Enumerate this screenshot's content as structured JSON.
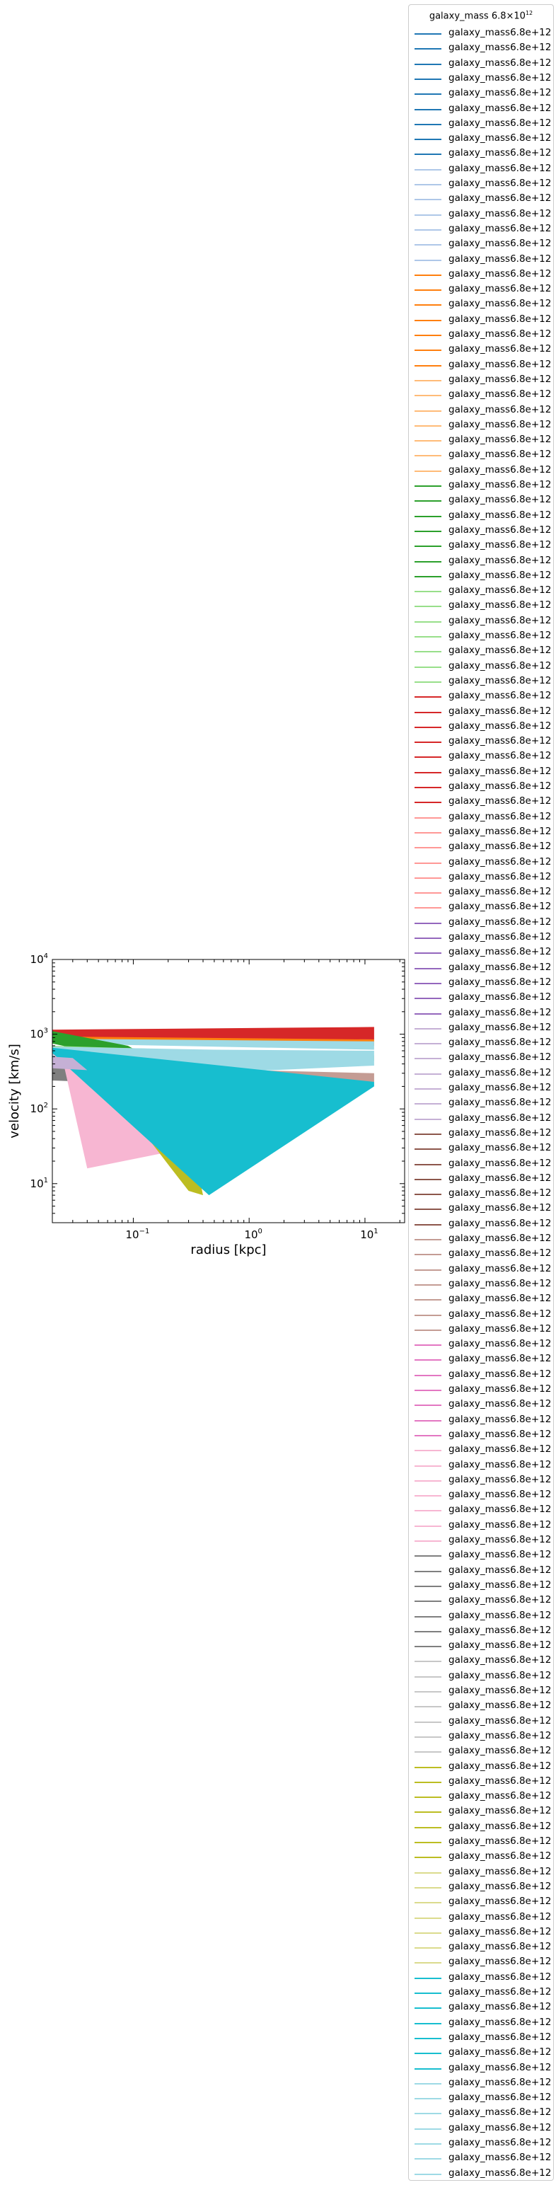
{
  "chart_data": {
    "type": "area",
    "xlabel": "radius [kpc]",
    "ylabel": "velocity [km/s]",
    "x_scale": "log",
    "y_scale": "log",
    "xlim": [
      0.02,
      22
    ],
    "ylim": [
      3,
      10000
    ],
    "x_ticks": [
      {
        "value": 0.1,
        "label": "10",
        "exp": "−1"
      },
      {
        "value": 1,
        "label": "10",
        "exp": "0"
      },
      {
        "value": 10,
        "label": "10",
        "exp": "1"
      }
    ],
    "y_ticks": [
      {
        "value": 10,
        "label": "10",
        "exp": "1"
      },
      {
        "value": 100,
        "label": "10",
        "exp": "2"
      },
      {
        "value": 1000,
        "label": "10",
        "exp": "3"
      },
      {
        "value": 10000,
        "label": "10",
        "exp": "4"
      }
    ],
    "grid": false,
    "legend_position": "outside-right",
    "legend_title": "galaxy_mass 6.8×10",
    "legend_title_exp": "12",
    "legend_label": "galaxy_mass6.8e+12",
    "legend_colors": [
      "#1f77b4",
      "#1f77b4",
      "#1f77b4",
      "#1f77b4",
      "#1f77b4",
      "#1f77b4",
      "#1f77b4",
      "#1f77b4",
      "#1f77b4",
      "#aec7e8",
      "#aec7e8",
      "#aec7e8",
      "#aec7e8",
      "#aec7e8",
      "#aec7e8",
      "#aec7e8",
      "#ff7f0e",
      "#ff7f0e",
      "#ff7f0e",
      "#ff7f0e",
      "#ff7f0e",
      "#ff7f0e",
      "#ff7f0e",
      "#ffbb78",
      "#ffbb78",
      "#ffbb78",
      "#ffbb78",
      "#ffbb78",
      "#ffbb78",
      "#ffbb78",
      "#2ca02c",
      "#2ca02c",
      "#2ca02c",
      "#2ca02c",
      "#2ca02c",
      "#2ca02c",
      "#2ca02c",
      "#98df8a",
      "#98df8a",
      "#98df8a",
      "#98df8a",
      "#98df8a",
      "#98df8a",
      "#98df8a",
      "#d62728",
      "#d62728",
      "#d62728",
      "#d62728",
      "#d62728",
      "#d62728",
      "#d62728",
      "#d62728",
      "#ff9896",
      "#ff9896",
      "#ff9896",
      "#ff9896",
      "#ff9896",
      "#ff9896",
      "#ff9896",
      "#9467bd",
      "#9467bd",
      "#9467bd",
      "#9467bd",
      "#9467bd",
      "#9467bd",
      "#9467bd",
      "#c5b0d5",
      "#c5b0d5",
      "#c5b0d5",
      "#c5b0d5",
      "#c5b0d5",
      "#c5b0d5",
      "#c5b0d5",
      "#8c564b",
      "#8c564b",
      "#8c564b",
      "#8c564b",
      "#8c564b",
      "#8c564b",
      "#8c564b",
      "#c49c94",
      "#c49c94",
      "#c49c94",
      "#c49c94",
      "#c49c94",
      "#c49c94",
      "#c49c94",
      "#e377c2",
      "#e377c2",
      "#e377c2",
      "#e377c2",
      "#e377c2",
      "#e377c2",
      "#e377c2",
      "#f7b6d2",
      "#f7b6d2",
      "#f7b6d2",
      "#f7b6d2",
      "#f7b6d2",
      "#f7b6d2",
      "#f7b6d2",
      "#7f7f7f",
      "#7f7f7f",
      "#7f7f7f",
      "#7f7f7f",
      "#7f7f7f",
      "#7f7f7f",
      "#7f7f7f",
      "#c7c7c7",
      "#c7c7c7",
      "#c7c7c7",
      "#c7c7c7",
      "#c7c7c7",
      "#c7c7c7",
      "#c7c7c7",
      "#bcbd22",
      "#bcbd22",
      "#bcbd22",
      "#bcbd22",
      "#bcbd22",
      "#bcbd22",
      "#bcbd22",
      "#dbdb8d",
      "#dbdb8d",
      "#dbdb8d",
      "#dbdb8d",
      "#dbdb8d",
      "#dbdb8d",
      "#dbdb8d",
      "#17becf",
      "#17becf",
      "#17becf",
      "#17becf",
      "#17becf",
      "#17becf",
      "#17becf",
      "#9edae5",
      "#9edae5",
      "#9edae5",
      "#9edae5",
      "#9edae5",
      "#9edae5",
      "#9edae5"
    ],
    "areas": [
      {
        "color": "#ff7f0e",
        "points": [
          [
            0.02,
            1050
          ],
          [
            0.02,
            850
          ],
          [
            12,
            700
          ],
          [
            12,
            850
          ]
        ]
      },
      {
        "color": "#d62728",
        "points": [
          [
            0.02,
            1150
          ],
          [
            0.02,
            930
          ],
          [
            12,
            850
          ],
          [
            12,
            1250
          ]
        ]
      },
      {
        "color": "#9edae5",
        "points": [
          [
            0.02,
            870
          ],
          [
            0.02,
            750
          ],
          [
            12,
            620
          ],
          [
            12,
            800
          ]
        ]
      },
      {
        "color": "#2ca02c",
        "points": [
          [
            0.02,
            1100
          ],
          [
            0.02,
            750
          ],
          [
            0.2,
            350
          ],
          [
            0.09,
            700
          ]
        ]
      },
      {
        "color": "#7f7f7f",
        "points": [
          [
            0.02,
            520
          ],
          [
            0.02,
            240
          ],
          [
            0.09,
            220
          ],
          [
            0.05,
            480
          ]
        ]
      },
      {
        "color": "#c49c94",
        "points": [
          [
            0.2,
            300
          ],
          [
            12,
            230
          ],
          [
            12,
            300
          ],
          [
            0.5,
            340
          ]
        ]
      },
      {
        "color": "#98df8a",
        "points": [
          [
            0.02,
            700
          ],
          [
            0.02,
            600
          ],
          [
            12,
            440
          ],
          [
            12,
            520
          ]
        ]
      },
      {
        "color": "#9edae5",
        "points": [
          [
            0.02,
            680
          ],
          [
            0.02,
            380
          ],
          [
            0.4,
            300
          ],
          [
            12,
            380
          ],
          [
            12,
            600
          ],
          [
            0.5,
            620
          ]
        ]
      },
      {
        "color": "#f7b6d2",
        "points": [
          [
            0.02,
            540
          ],
          [
            0.025,
            400
          ],
          [
            0.04,
            16
          ],
          [
            0.3,
            30
          ],
          [
            0.25,
            300
          ]
        ]
      },
      {
        "color": "#bcbd22",
        "points": [
          [
            0.05,
            300
          ],
          [
            0.2,
            18
          ],
          [
            0.3,
            8
          ],
          [
            0.4,
            7
          ],
          [
            0.3,
            60
          ]
        ]
      },
      {
        "color": "#17becf",
        "points": [
          [
            0.02,
            660
          ],
          [
            0.02,
            560
          ],
          [
            0.45,
            7
          ],
          [
            12,
            200
          ],
          [
            12,
            230
          ]
        ]
      },
      {
        "color": "#c5b0d5",
        "points": [
          [
            0.02,
            500
          ],
          [
            0.02,
            350
          ],
          [
            0.04,
            330
          ],
          [
            0.03,
            480
          ]
        ]
      }
    ]
  }
}
